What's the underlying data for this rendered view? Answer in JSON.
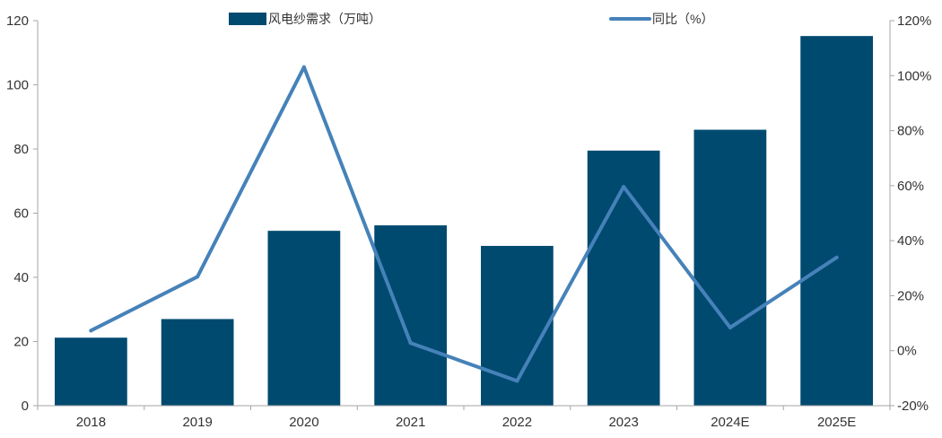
{
  "chart_data": {
    "type": "bar",
    "categories": [
      "2018",
      "2019",
      "2020",
      "2021",
      "2022",
      "2023",
      "2024E",
      "2025E"
    ],
    "series": [
      {
        "name": "风电纱需求（万吨）",
        "type": "bar",
        "axis": "left",
        "values": [
          21.2,
          27,
          54.5,
          56.2,
          49.8,
          79.5,
          86,
          115.2
        ],
        "color": "#004A70"
      },
      {
        "name": "同比（%）",
        "type": "line",
        "axis": "right",
        "values": [
          7.3,
          26.9,
          103.1,
          2.8,
          -11,
          59.6,
          8.4,
          33.9
        ],
        "color": "#4682B9"
      }
    ],
    "ylim_left": [
      0,
      120
    ],
    "yticks_left": [
      "0",
      "20",
      "40",
      "60",
      "80",
      "100",
      "120"
    ],
    "ylim_right": [
      -20,
      120
    ],
    "yticks_right": [
      "-20%",
      "0%",
      "20%",
      "40%",
      "60%",
      "80%",
      "100%",
      "120%"
    ],
    "legend_position": "top",
    "grid": false
  }
}
